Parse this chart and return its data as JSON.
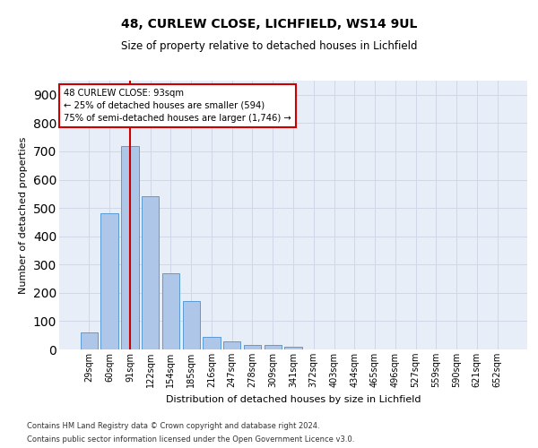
{
  "title1": "48, CURLEW CLOSE, LICHFIELD, WS14 9UL",
  "title2": "Size of property relative to detached houses in Lichfield",
  "xlabel": "Distribution of detached houses by size in Lichfield",
  "ylabel": "Number of detached properties",
  "categories": [
    "29sqm",
    "60sqm",
    "91sqm",
    "122sqm",
    "154sqm",
    "185sqm",
    "216sqm",
    "247sqm",
    "278sqm",
    "309sqm",
    "341sqm",
    "372sqm",
    "403sqm",
    "434sqm",
    "465sqm",
    "496sqm",
    "527sqm",
    "559sqm",
    "590sqm",
    "621sqm",
    "652sqm"
  ],
  "values": [
    60,
    480,
    720,
    540,
    270,
    170,
    45,
    30,
    15,
    15,
    8,
    0,
    0,
    0,
    0,
    0,
    0,
    0,
    0,
    0,
    0
  ],
  "bar_color": "#aec6e8",
  "bar_edge_color": "#5b9bd5",
  "vline_x_index": 2,
  "vline_color": "#cc0000",
  "annotation_text": "48 CURLEW CLOSE: 93sqm\n← 25% of detached houses are smaller (594)\n75% of semi-detached houses are larger (1,746) →",
  "annotation_box_color": "#ffffff",
  "annotation_box_edge_color": "#cc0000",
  "ylim": [
    0,
    950
  ],
  "yticks": [
    0,
    100,
    200,
    300,
    400,
    500,
    600,
    700,
    800,
    900
  ],
  "grid_color": "#d0d8e8",
  "background_color": "#e8eef8",
  "footer1": "Contains HM Land Registry data © Crown copyright and database right 2024.",
  "footer2": "Contains public sector information licensed under the Open Government Licence v3.0."
}
